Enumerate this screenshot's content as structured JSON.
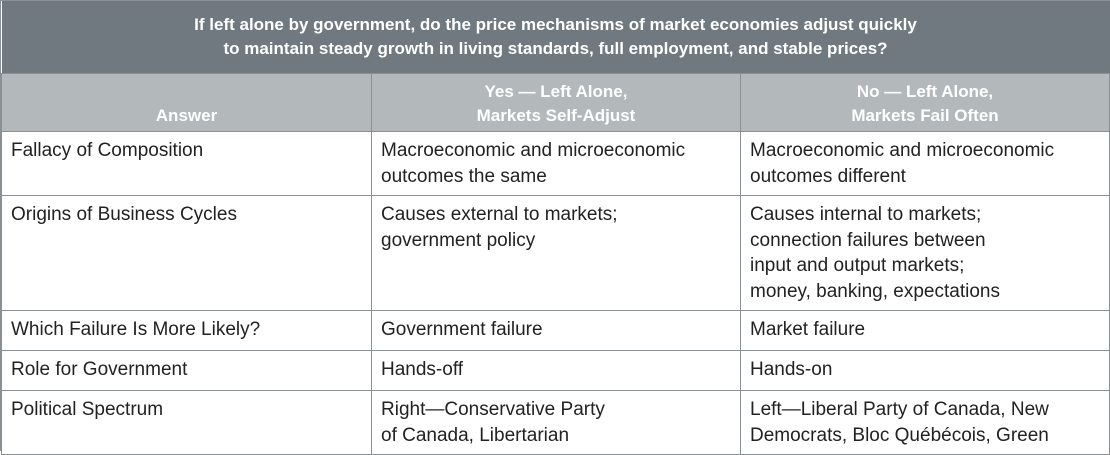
{
  "question": [
    "If left alone by government, do the price mechanisms of market economies adjust quickly",
    "to maintain steady growth in living standards, full employment, and stable prices?"
  ],
  "headers": {
    "answer": "Answer",
    "yes": [
      "Yes — Left Alone,",
      "Markets Self-Adjust"
    ],
    "no": [
      "No — Left Alone,",
      "Markets Fail Often"
    ]
  },
  "rows": [
    {
      "label": "Fallacy of Composition",
      "yes": [
        "Macroeconomic and microeconomic",
        "outcomes the same"
      ],
      "no": [
        "Macroeconomic and microeconomic",
        "outcomes different"
      ]
    },
    {
      "label": "Origins of Business Cycles",
      "yes": [
        "Causes external to markets;",
        "government policy"
      ],
      "no": [
        "Causes internal to markets;",
        "connection failures between",
        "input and output markets;",
        "money, banking, expectations"
      ]
    },
    {
      "label": "Which Failure Is More Likely?",
      "yes": [
        "Government failure"
      ],
      "no": [
        "Market failure"
      ]
    },
    {
      "label": "Role for Government",
      "yes": [
        "Hands-off"
      ],
      "no": [
        "Hands-on"
      ]
    },
    {
      "label": "Political Spectrum",
      "yes": [
        "Right—Conservative Party",
        "of Canada, Libertarian"
      ],
      "no": [
        "Left—Liberal Party of Canada, New",
        "Democrats, Bloc Québécois, Green"
      ]
    }
  ],
  "colors": {
    "question_bg": "#6f797f",
    "header_bg": "#b3b8bb",
    "border": "#8a9094",
    "text": "#222222"
  }
}
